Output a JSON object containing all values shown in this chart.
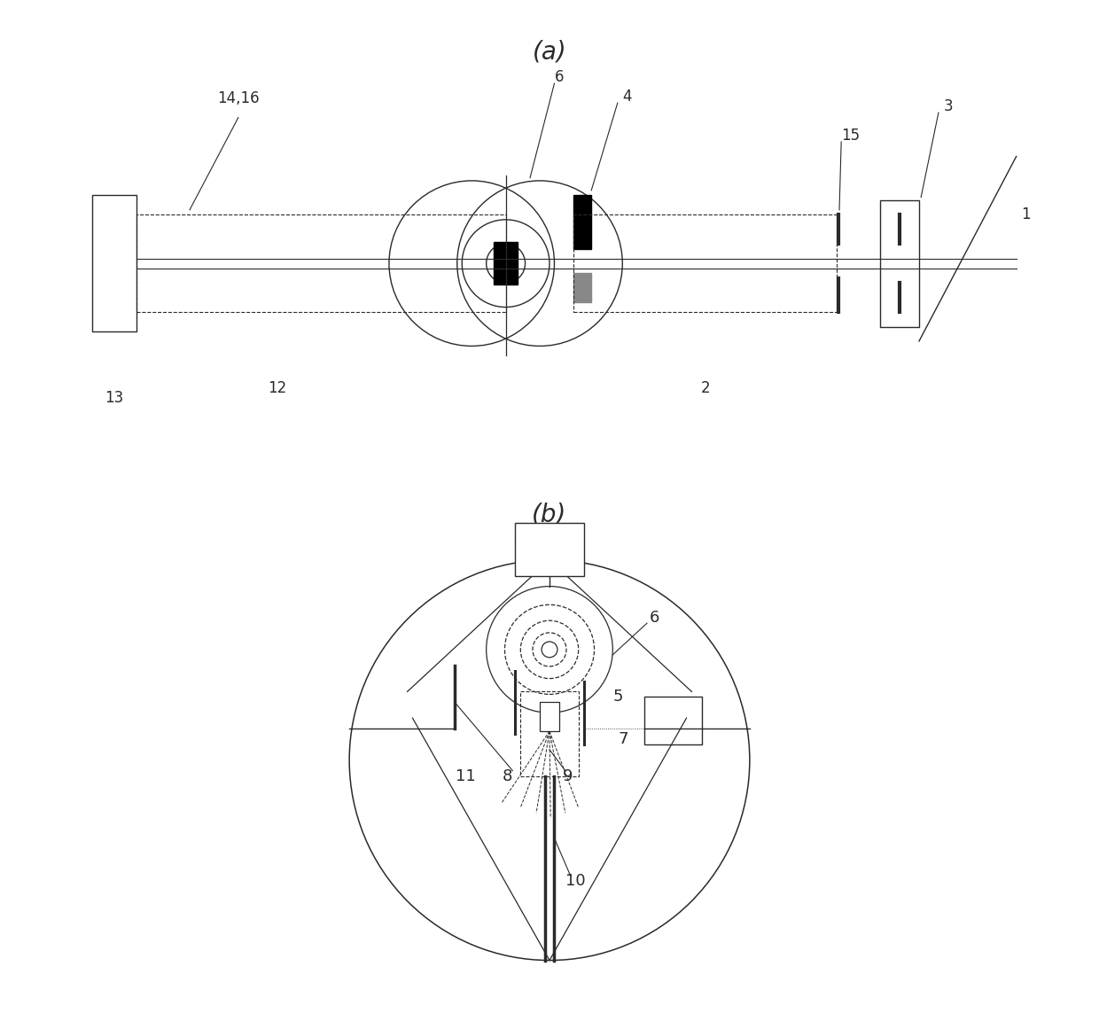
{
  "bg_color": "#ffffff",
  "line_color": "#2a2a2a",
  "fig_width": 12.4,
  "fig_height": 11.43,
  "lw": 1.0
}
